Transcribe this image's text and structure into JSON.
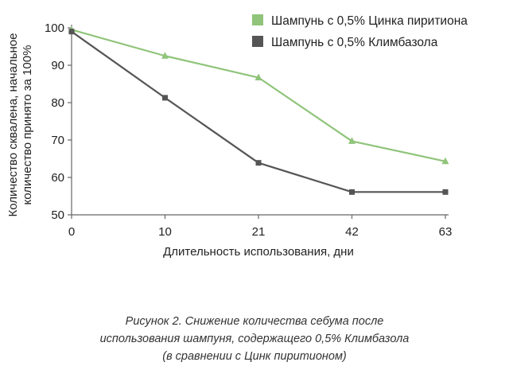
{
  "chart_data": {
    "type": "line",
    "x": [
      0,
      10,
      21,
      42,
      63
    ],
    "xlabel": "Длительность использования, дни",
    "ylabel_lines": [
      "Количество сквалена, начальное",
      "количество принято за 100%"
    ],
    "ylim": [
      50,
      100
    ],
    "yticks": [
      50,
      60,
      70,
      80,
      90,
      100
    ],
    "grid": false,
    "legend_position": "top-right",
    "series": [
      {
        "name": "Шампунь с 0,5% Цинка пиритиона",
        "color": "#8fc47a",
        "marker": "triangle",
        "values": [
          99.5,
          92.5,
          86.7,
          69.7,
          64.3
        ]
      },
      {
        "name": "Шампунь с 0,5% Климбазола",
        "color": "#555555",
        "marker": "square",
        "values": [
          99,
          81.3,
          63.9,
          56.1,
          56.1
        ]
      }
    ]
  },
  "caption": {
    "line1": "Рисунок 2. Снижение количества себума после",
    "line2": "использования шампуня, содержащего 0,5% Климбазола",
    "line3": "(в сравнении с Цинк пиритионом)"
  }
}
